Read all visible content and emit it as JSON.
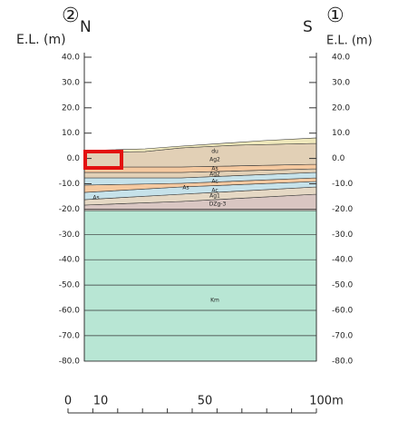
{
  "header": {
    "left_marker": "②",
    "left_direction": "N",
    "right_direction": "S",
    "right_marker": "①",
    "left_axis_title": "E.L. (m)",
    "right_axis_title": "E.L. (m)"
  },
  "elevation_labels": [
    "40.0",
    "30.0",
    "20.0",
    "10.0",
    "0.0",
    "-10.0",
    "-20.0",
    "-30.0",
    "-40.0",
    "-50.0",
    "-60.0",
    "-70.0",
    "-80.0"
  ],
  "distance_labels": [
    "0",
    "10",
    "50",
    "100m"
  ],
  "layer_labels": [
    "du",
    "Ag2",
    "As",
    "Ag2",
    "Ac",
    "As",
    "Ac",
    "Ag1",
    "DZg-3",
    "As",
    "Km"
  ]
}
